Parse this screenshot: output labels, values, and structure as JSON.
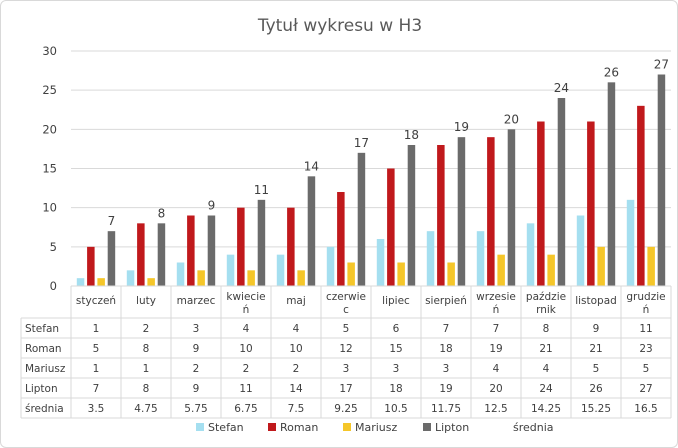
{
  "chart_data": {
    "type": "bar",
    "title": "Tytuł wykresu w H3",
    "categories": [
      [
        "styczeń"
      ],
      [
        "luty"
      ],
      [
        "marzec"
      ],
      [
        "kwiecie",
        "ń"
      ],
      [
        "maj"
      ],
      [
        "czerwie",
        "c"
      ],
      [
        "lipiec"
      ],
      [
        "sierpień"
      ],
      [
        "wrzesie",
        "ń"
      ],
      [
        "paździe",
        "rnik"
      ],
      [
        "listopad"
      ],
      [
        "grudzie",
        "ń"
      ]
    ],
    "ylim": [
      0,
      30
    ],
    "yticks": [
      0,
      5,
      10,
      15,
      20,
      25,
      30
    ],
    "grid": true,
    "legend_position": "bottom",
    "series": [
      {
        "name": "Stefan",
        "color": "#a5dff0",
        "chart": "bar",
        "values": [
          1,
          2,
          3,
          4,
          4,
          5,
          6,
          7,
          7,
          8,
          9,
          11
        ],
        "table": [
          "1",
          "2",
          "3",
          "4",
          "4",
          "5",
          "6",
          "7",
          "7",
          "8",
          "9",
          "11"
        ]
      },
      {
        "name": "Roman",
        "color": "#c0191c",
        "chart": "bar",
        "values": [
          5,
          8,
          9,
          10,
          10,
          12,
          15,
          18,
          19,
          21,
          21,
          23
        ],
        "table": [
          "5",
          "8",
          "9",
          "10",
          "10",
          "12",
          "15",
          "18",
          "19",
          "21",
          "21",
          "23"
        ]
      },
      {
        "name": "Mariusz",
        "color": "#f5c629",
        "chart": "bar",
        "values": [
          1,
          1,
          2,
          2,
          2,
          3,
          3,
          3,
          4,
          4,
          5,
          5
        ],
        "table": [
          "1",
          "1",
          "2",
          "2",
          "2",
          "3",
          "3",
          "3",
          "4",
          "4",
          "5",
          "5"
        ]
      },
      {
        "name": "Lipton",
        "color": "#6b6b6b",
        "chart": "bar",
        "values": [
          7,
          8,
          9,
          11,
          14,
          17,
          18,
          19,
          20,
          24,
          26,
          27
        ],
        "table": [
          "7",
          "8",
          "9",
          "11",
          "14",
          "17",
          "18",
          "19",
          "20",
          "24",
          "26",
          "27"
        ],
        "data_labels": true
      },
      {
        "name": "średnia",
        "color": "none",
        "chart": "none",
        "values": [
          3.5,
          4.75,
          5.75,
          6.75,
          7.5,
          9.25,
          10.5,
          11.75,
          12.5,
          14.25,
          15.25,
          16.5
        ],
        "table": [
          "3.5",
          "4.75",
          "5.75",
          "6.75",
          "7.5",
          "9.25",
          "10.5",
          "11.75",
          "12.5",
          "14.25",
          "15.25",
          "16.5"
        ]
      }
    ]
  }
}
